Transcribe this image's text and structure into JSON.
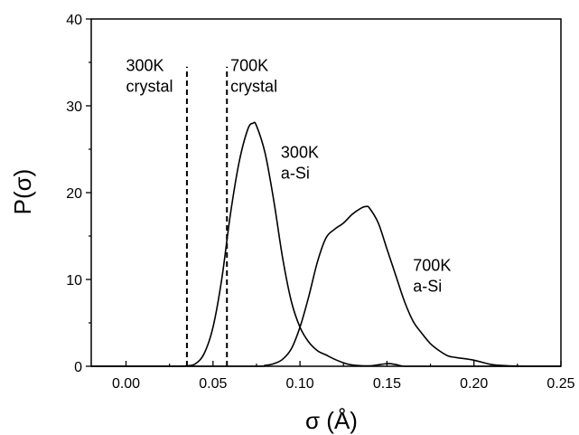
{
  "chart_data": {
    "type": "line",
    "title": "",
    "xlabel": "σ (Å)",
    "ylabel": "P(σ)",
    "xlim": [
      -0.02,
      0.25
    ],
    "ylim": [
      0,
      40
    ],
    "x_ticks": [
      {
        "value": 0.0,
        "label": "0.00"
      },
      {
        "value": 0.05,
        "label": "0.05"
      },
      {
        "value": 0.1,
        "label": "0.10"
      },
      {
        "value": 0.15,
        "label": "0.15"
      },
      {
        "value": 0.2,
        "label": "0.20"
      },
      {
        "value": 0.25,
        "label": "0.25"
      }
    ],
    "y_ticks": [
      {
        "value": 0,
        "label": "0"
      },
      {
        "value": 10,
        "label": "10"
      },
      {
        "value": 20,
        "label": "20"
      },
      {
        "value": 30,
        "label": "30"
      },
      {
        "value": 40,
        "label": "40"
      }
    ],
    "grid": false,
    "legend": "none",
    "line_color": "#000000",
    "vlines": [
      {
        "x": 0.035,
        "y_top": 34.5,
        "style": "dashed"
      },
      {
        "x": 0.058,
        "y_top": 34.5,
        "style": "dashed"
      }
    ],
    "series": [
      {
        "x": [
          -0.02,
          0.02,
          0.03,
          0.035,
          0.04,
          0.045,
          0.05,
          0.055,
          0.06,
          0.065,
          0.07,
          0.073,
          0.075,
          0.08,
          0.085,
          0.09,
          0.095,
          0.1,
          0.105,
          0.11,
          0.115,
          0.12,
          0.125,
          0.13,
          0.14,
          0.15,
          0.155,
          0.16,
          0.17,
          0.25
        ],
        "y": [
          0,
          0,
          0,
          0.05,
          0.3,
          1.5,
          4.5,
          10,
          17.5,
          23.5,
          27.3,
          28.0,
          27.7,
          24.5,
          19.0,
          12.5,
          7.5,
          4.5,
          2.8,
          1.8,
          1.3,
          0.8,
          0.4,
          0.15,
          0.05,
          0.3,
          0.2,
          0,
          0,
          0
        ]
      },
      {
        "x": [
          -0.02,
          0.07,
          0.08,
          0.085,
          0.09,
          0.095,
          0.1,
          0.105,
          0.11,
          0.115,
          0.12,
          0.125,
          0.13,
          0.135,
          0.138,
          0.14,
          0.145,
          0.15,
          0.155,
          0.16,
          0.165,
          0.17,
          0.175,
          0.18,
          0.185,
          0.19,
          0.2,
          0.21,
          0.22,
          0.23,
          0.25
        ],
        "y": [
          0,
          0,
          0.1,
          0.3,
          0.8,
          2.0,
          4.5,
          8.0,
          12.0,
          14.8,
          15.8,
          16.5,
          17.5,
          18.2,
          18.4,
          18.2,
          16.5,
          13.5,
          10.5,
          7.5,
          5.2,
          3.8,
          2.6,
          1.8,
          1.2,
          1.0,
          0.7,
          0.2,
          0.05,
          0,
          0
        ]
      }
    ],
    "annotations": [
      {
        "lines": [
          "300K",
          "crystal"
        ],
        "x": 0.0,
        "y": 34.0
      },
      {
        "lines": [
          "700K",
          "crystal"
        ],
        "x": 0.06,
        "y": 34.0
      },
      {
        "lines": [
          "300K",
          "a-Si"
        ],
        "x": 0.089,
        "y": 24.0
      },
      {
        "lines": [
          "700K",
          "a-Si"
        ],
        "x": 0.165,
        "y": 11.0
      }
    ]
  }
}
